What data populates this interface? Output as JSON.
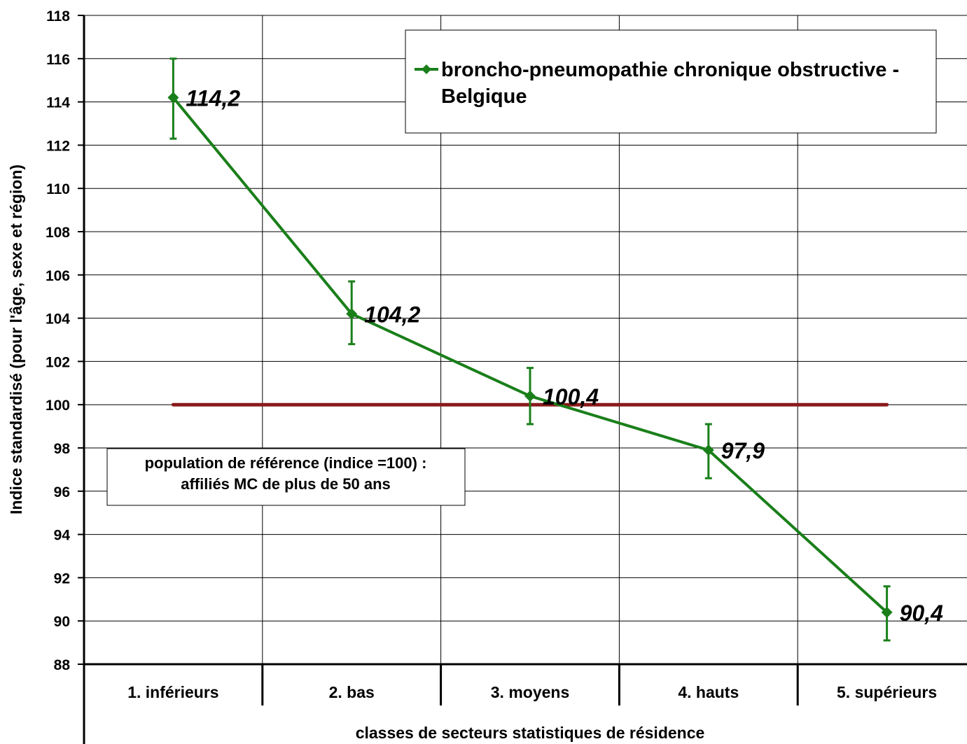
{
  "chart_data": {
    "type": "line",
    "ylabel": "Indice standardisé (pour l'âge, sexe et région)",
    "xlabel": "classes de secteurs statistiques de résidence",
    "ylim": [
      88,
      118
    ],
    "yticks": [
      88,
      90,
      92,
      94,
      96,
      98,
      100,
      102,
      104,
      106,
      108,
      110,
      112,
      114,
      116,
      118
    ],
    "categories": [
      "1. inférieurs",
      "2. bas",
      "3. moyens",
      "4. hauts",
      "5. supérieurs"
    ],
    "grid": true,
    "legend_position": "top-right",
    "series": [
      {
        "name": "broncho-pneumopathie chronique obstructive - Belgique",
        "legend_lines": [
          "broncho-pneumopathie chronique obstructive -",
          "Belgique"
        ],
        "color": "#1a7f1a",
        "values": [
          114.2,
          104.2,
          100.4,
          97.9,
          90.4
        ],
        "labels": [
          "114,2",
          "104,2",
          "100,4",
          "97,9",
          "90,4"
        ],
        "error_low": [
          112.3,
          102.8,
          99.1,
          96.6,
          89.1
        ],
        "error_high": [
          116.0,
          105.7,
          101.7,
          99.1,
          91.6
        ]
      }
    ],
    "reference_line": {
      "value": 100,
      "color": "#8b1a1a"
    },
    "annotation": {
      "lines": [
        "population de référence (indice =100) :",
        "affiliés MC de plus de 50 ans"
      ]
    }
  }
}
